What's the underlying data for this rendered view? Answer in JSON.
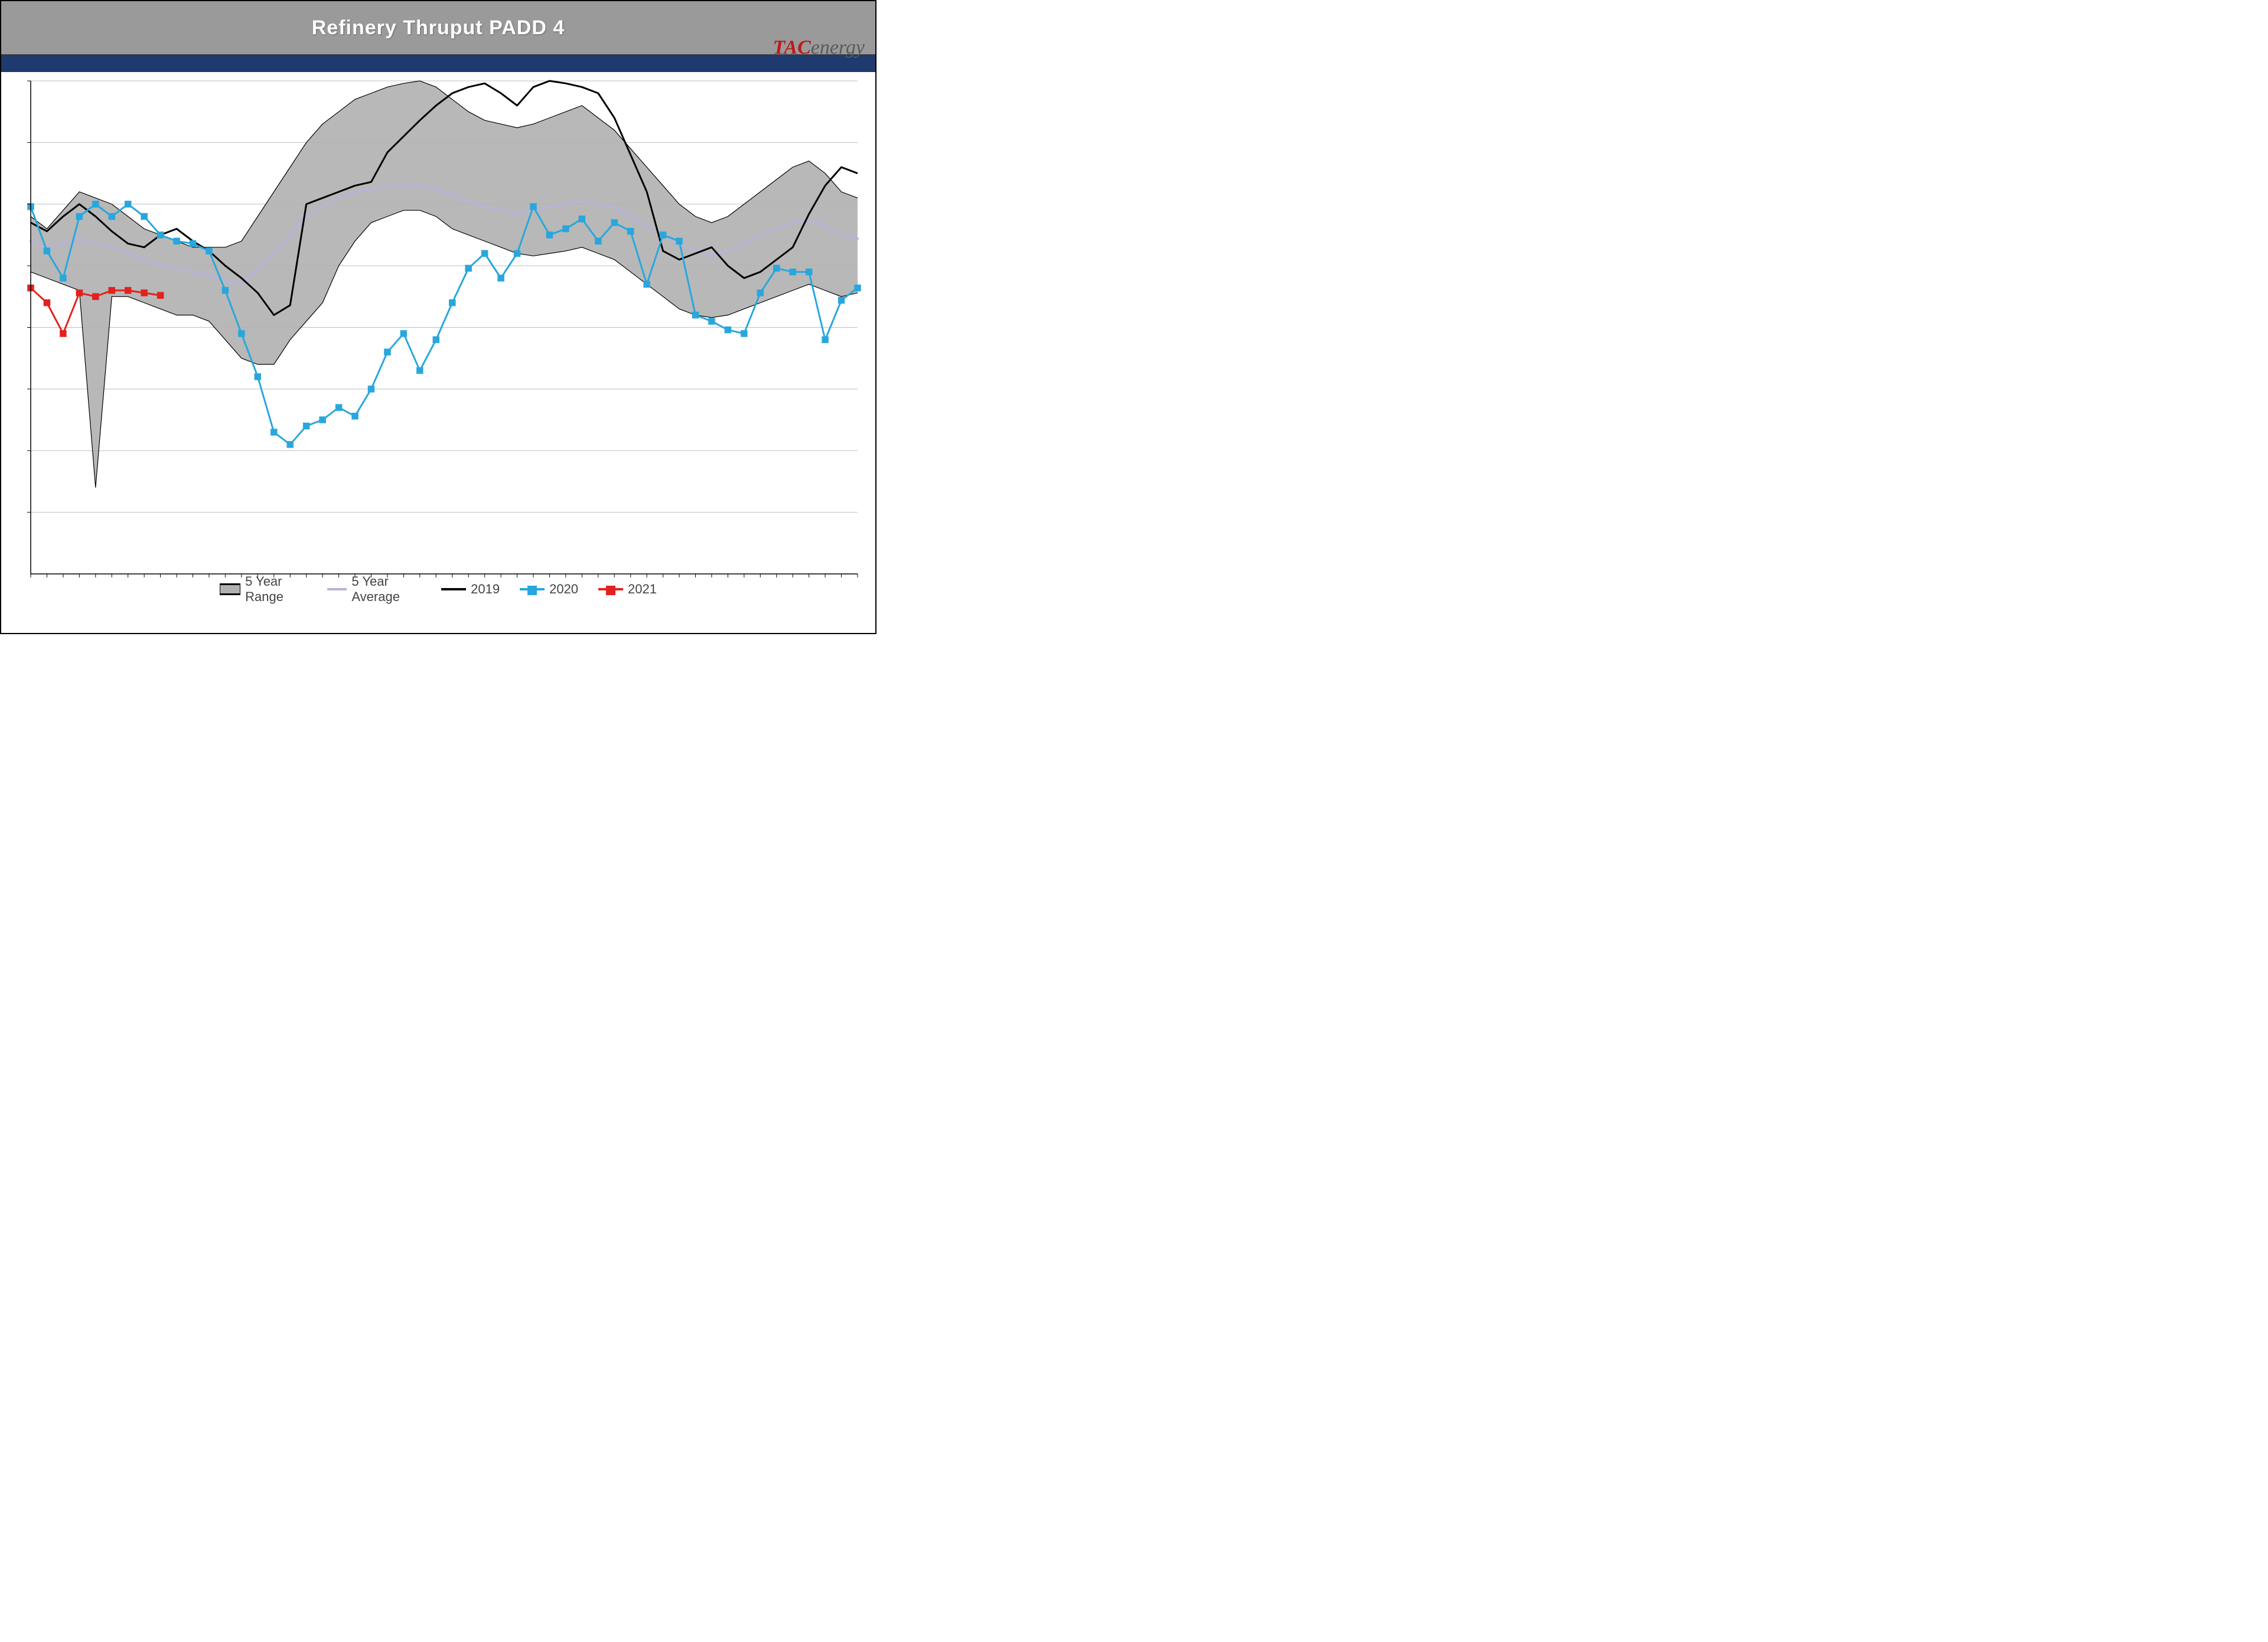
{
  "title": "Refinery Thruput PADD 4",
  "logo": {
    "prefix": "TAC",
    "suffix": "energy"
  },
  "colors": {
    "title_bar_bg": "#9a9a9a",
    "title_text": "#ffffff",
    "blue_bar": "#1f3a6e",
    "range_fill": "#b0b0b0",
    "range_stroke": "#000000",
    "avg_line": "#b6b4d8",
    "line_2019": "#000000",
    "line_2020": "#29a7dd",
    "marker_2020_fill": "#29a7dd",
    "line_2021": "#e2221f",
    "marker_2021_fill": "#e2221f",
    "gridline": "#bfbfbf",
    "axis": "#000000",
    "background": "#ffffff"
  },
  "chart": {
    "type": "line_with_range",
    "x_count": 52,
    "ylim": [
      350,
      750
    ],
    "ytick_step": 50,
    "gridlines_y": [
      400,
      450,
      500,
      550,
      600,
      650,
      700,
      750
    ],
    "line_width_2019": 3,
    "line_width_2020": 3,
    "line_width_2021": 3,
    "line_width_avg": 4,
    "marker_size": 10,
    "range_upper": [
      640,
      630,
      645,
      660,
      655,
      650,
      640,
      630,
      625,
      620,
      615,
      615,
      615,
      620,
      640,
      660,
      680,
      700,
      715,
      725,
      735,
      740,
      745,
      748,
      750,
      745,
      735,
      725,
      718,
      715,
      712,
      715,
      720,
      725,
      730,
      720,
      710,
      695,
      680,
      665,
      650,
      640,
      635,
      640,
      650,
      660,
      670,
      680,
      685,
      675,
      660,
      655
    ],
    "range_lower": [
      595,
      590,
      585,
      580,
      420,
      575,
      575,
      570,
      565,
      560,
      560,
      555,
      540,
      525,
      520,
      520,
      540,
      555,
      570,
      600,
      620,
      635,
      640,
      645,
      645,
      640,
      630,
      625,
      620,
      615,
      610,
      608,
      610,
      612,
      615,
      610,
      605,
      595,
      585,
      575,
      565,
      560,
      558,
      560,
      565,
      570,
      575,
      580,
      585,
      580,
      575,
      578
    ],
    "avg": [
      620,
      615,
      618,
      622,
      618,
      615,
      610,
      605,
      600,
      598,
      595,
      592,
      588,
      585,
      598,
      610,
      625,
      640,
      648,
      655,
      660,
      662,
      665,
      665,
      665,
      662,
      658,
      652,
      648,
      645,
      642,
      645,
      648,
      650,
      652,
      650,
      648,
      640,
      632,
      625,
      618,
      612,
      608,
      612,
      618,
      625,
      630,
      635,
      638,
      632,
      625,
      622
    ],
    "y2019": [
      635,
      628,
      640,
      650,
      640,
      628,
      618,
      615,
      625,
      630,
      620,
      612,
      600,
      590,
      578,
      560,
      568,
      650,
      655,
      660,
      665,
      668,
      692,
      705,
      718,
      730,
      740,
      745,
      748,
      740,
      730,
      745,
      750,
      748,
      745,
      740,
      720,
      690,
      660,
      612,
      605,
      610,
      615,
      600,
      590,
      595,
      605,
      615,
      642,
      665,
      680,
      675
    ],
    "y2020": [
      648,
      612,
      590,
      640,
      650,
      640,
      650,
      640,
      625,
      620,
      618,
      612,
      580,
      545,
      510,
      465,
      455,
      470,
      475,
      485,
      478,
      500,
      530,
      545,
      515,
      540,
      570,
      598,
      610,
      590,
      610,
      648,
      625,
      630,
      638,
      620,
      635,
      628,
      585,
      625,
      620,
      560,
      555,
      548,
      545,
      578,
      598,
      595,
      595,
      540,
      572,
      582
    ],
    "y2021": [
      582,
      570,
      545,
      578,
      575,
      580,
      580,
      578,
      576
    ]
  },
  "legend": {
    "range": "5 Year Range",
    "avg": "5 Year Average",
    "y2019": "2019",
    "y2020": "2020",
    "y2021": "2021"
  }
}
